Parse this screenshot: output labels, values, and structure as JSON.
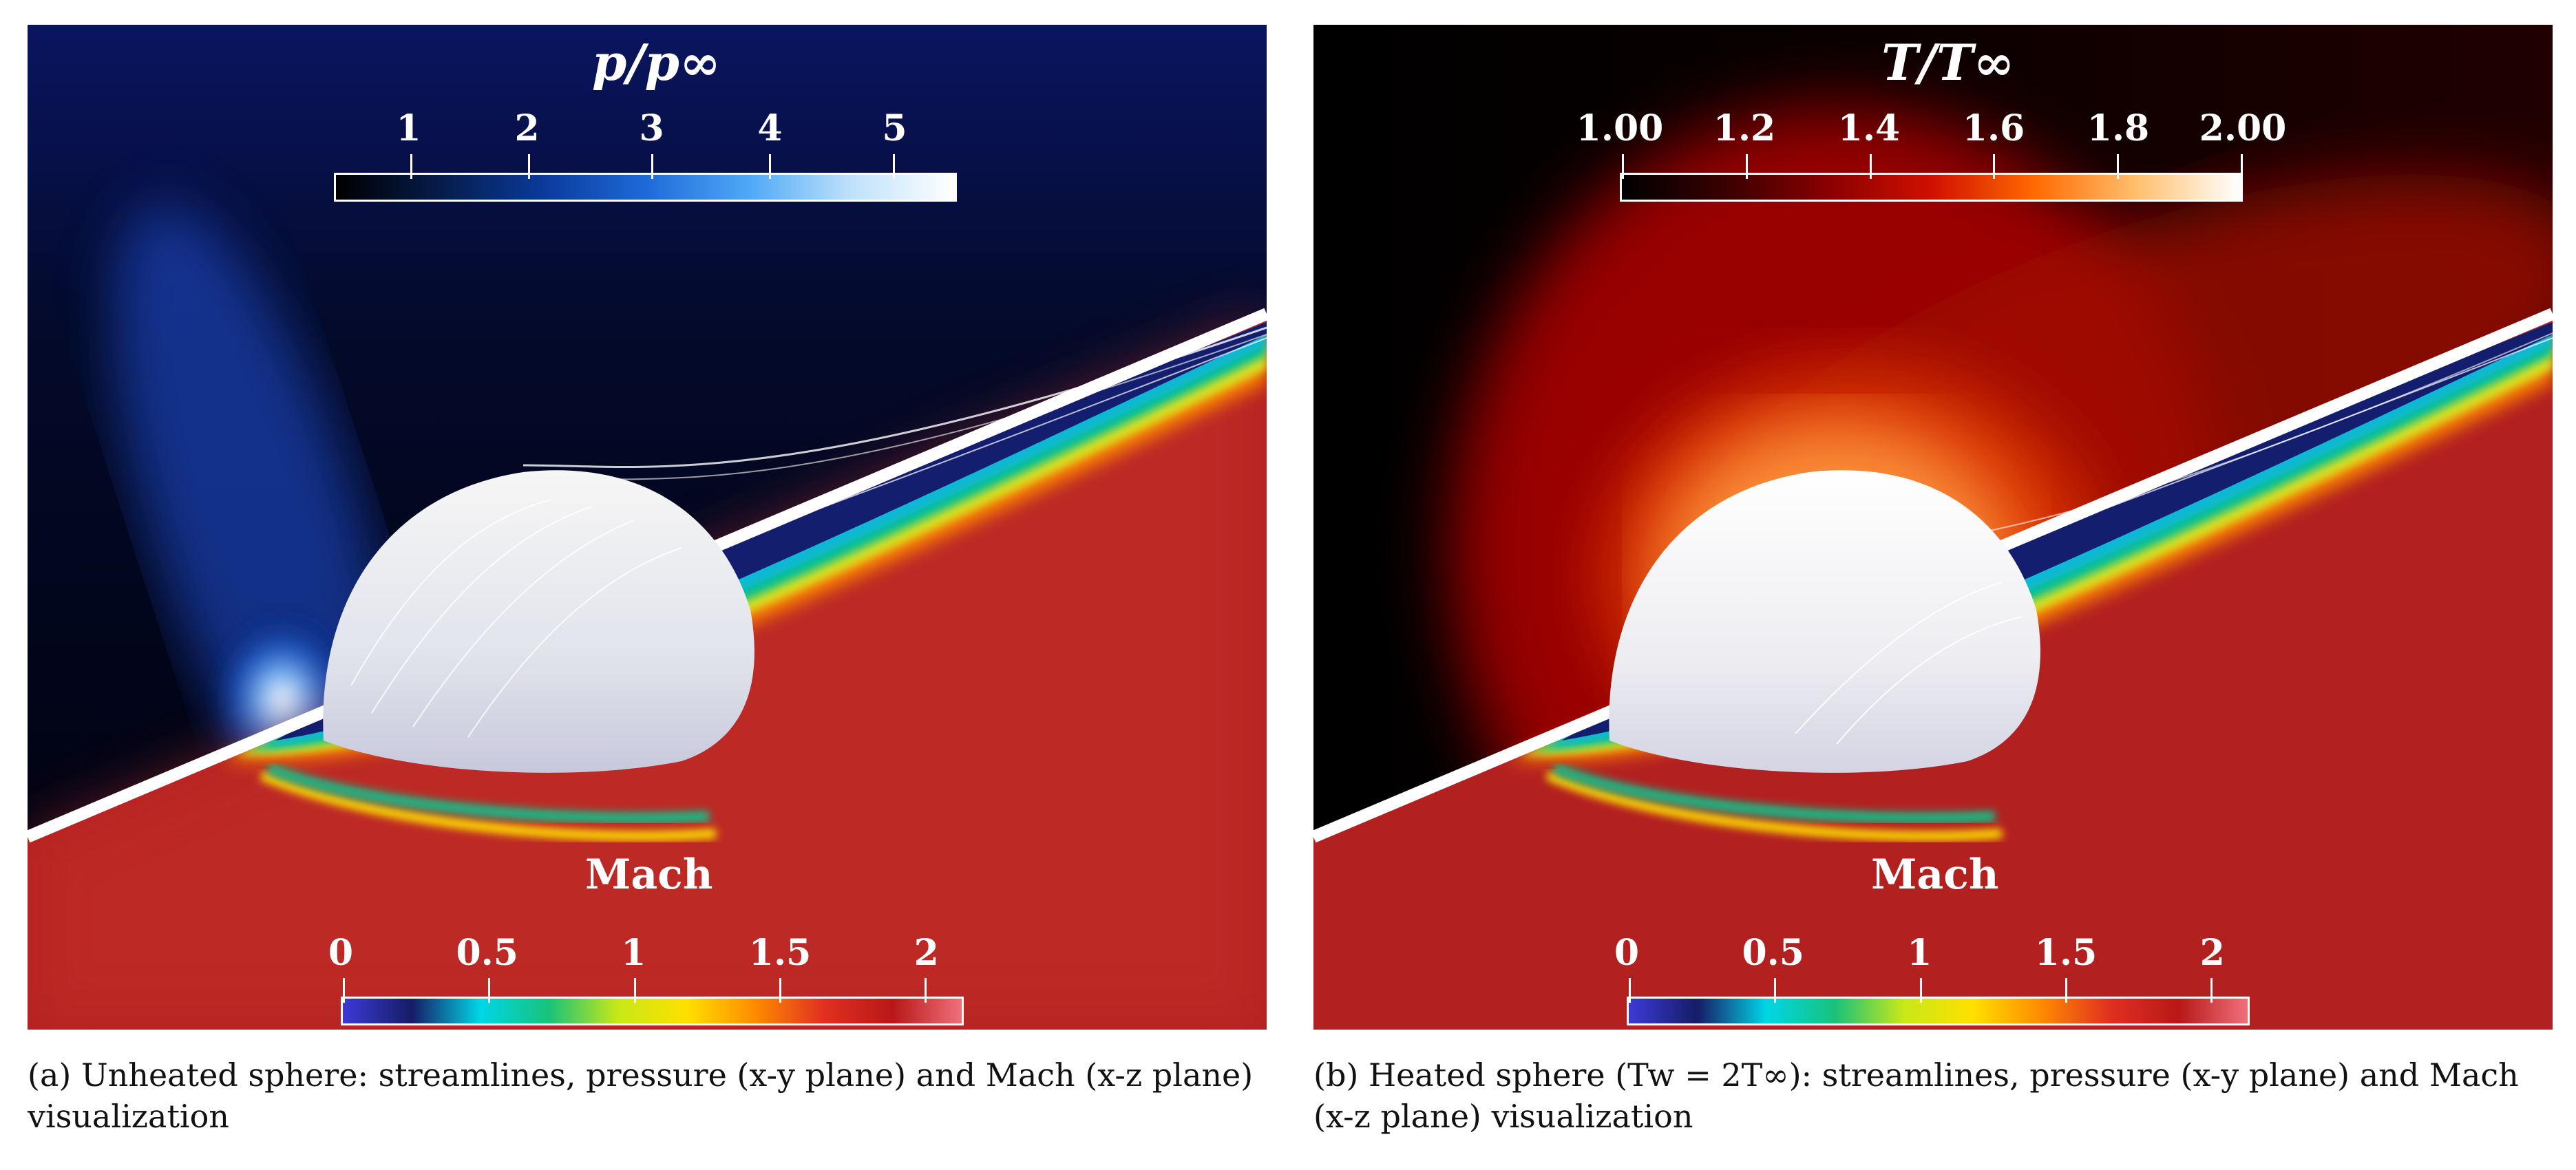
{
  "panels": [
    {
      "id": "a",
      "top_colorbar": {
        "title": "p/p∞",
        "ticks": [
          "1",
          "2",
          "3",
          "4",
          "5"
        ],
        "tick_fractions": [
          0.12,
          0.31,
          0.51,
          0.7,
          0.9
        ],
        "colors": [
          "#000000",
          "#061c4a",
          "#0a3a9a",
          "#1e6ad8",
          "#4ea8f6",
          "#bfe2fb",
          "#ffffff"
        ]
      },
      "bottom_colorbar": {
        "title": "Mach",
        "ticks": [
          "0",
          "0.5",
          "1",
          "1.5",
          "2"
        ],
        "tick_fractions": [
          0.0,
          0.235,
          0.47,
          0.705,
          0.94
        ],
        "colors": [
          "#3b3bd6",
          "#161c66",
          "#00d6e6",
          "#19c27a",
          "#c8e818",
          "#ffe000",
          "#ff8a00",
          "#e03020",
          "#b81818",
          "#f0707a"
        ]
      },
      "caption": "(a) Unheated sphere: streamlines, pressure (x-y plane) and Mach (x-z plane) visualization"
    },
    {
      "id": "b",
      "top_colorbar": {
        "title": "T/T∞",
        "ticks": [
          "1.00",
          "1.2",
          "1.4",
          "1.6",
          "1.8",
          "2.00"
        ],
        "tick_fractions": [
          0.0,
          0.2,
          0.4,
          0.6,
          0.8,
          1.0
        ],
        "colors": [
          "#000000",
          "#3a0000",
          "#8a0000",
          "#d01000",
          "#ff6a00",
          "#ffc070",
          "#ffffff"
        ]
      },
      "bottom_colorbar": {
        "title": "Mach",
        "ticks": [
          "0",
          "0.5",
          "1",
          "1.5",
          "2"
        ],
        "tick_fractions": [
          0.0,
          0.235,
          0.47,
          0.705,
          0.94
        ],
        "colors": [
          "#3b3bd6",
          "#161c66",
          "#00d6e6",
          "#19c27a",
          "#c8e818",
          "#ffe000",
          "#ff8a00",
          "#e03020",
          "#b81818",
          "#f0707a"
        ]
      },
      "caption": "(b) Heated sphere (Tw = 2T∞): streamlines, pressure (x-y plane) and Mach (x-z plane) visualization"
    }
  ]
}
